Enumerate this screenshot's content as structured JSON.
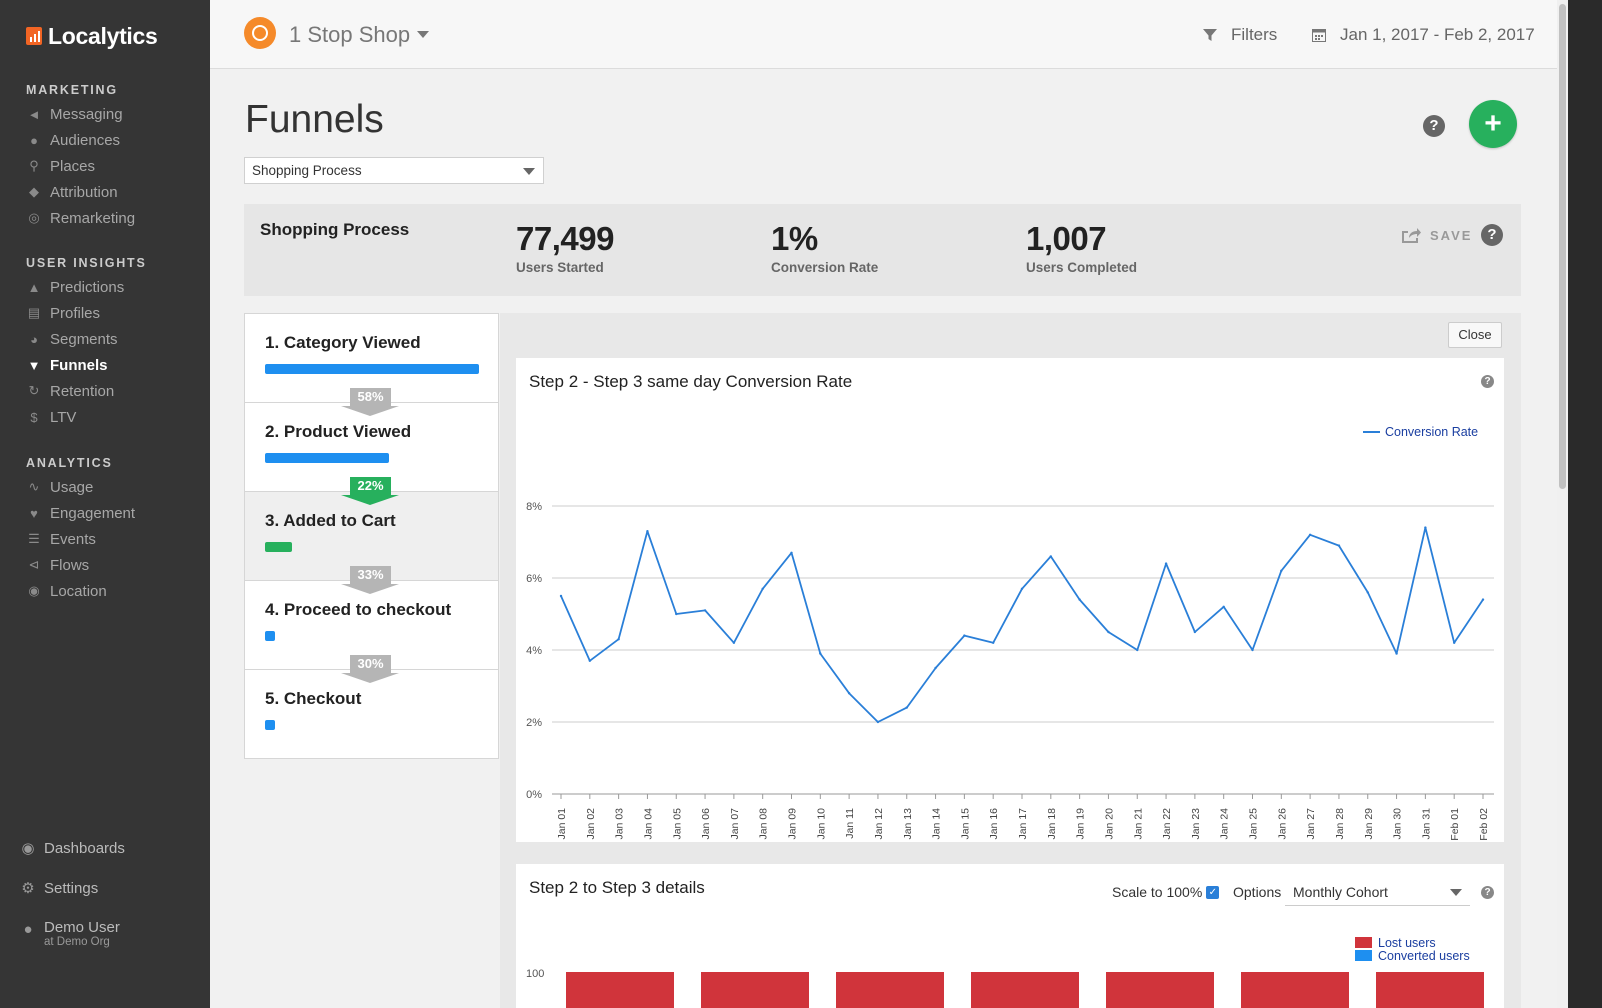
{
  "sidebar": {
    "brand": "Localytics",
    "sections": [
      {
        "title": "MARKETING",
        "items": [
          {
            "label": "Messaging",
            "icon": "megaphone-icon"
          },
          {
            "label": "Audiences",
            "icon": "people-icon"
          },
          {
            "label": "Places",
            "icon": "map-pin-icon"
          },
          {
            "label": "Attribution",
            "icon": "tag-icon"
          },
          {
            "label": "Remarketing",
            "icon": "target-icon"
          }
        ]
      },
      {
        "title": "USER INSIGHTS",
        "items": [
          {
            "label": "Predictions",
            "icon": "flask-icon"
          },
          {
            "label": "Profiles",
            "icon": "profile-card-icon"
          },
          {
            "label": "Segments",
            "icon": "pie-icon"
          },
          {
            "label": "Funnels",
            "icon": "funnel-icon",
            "active": true
          },
          {
            "label": "Retention",
            "icon": "refresh-icon"
          },
          {
            "label": "LTV",
            "icon": "dollar-icon"
          }
        ]
      },
      {
        "title": "ANALYTICS",
        "items": [
          {
            "label": "Usage",
            "icon": "pulse-icon"
          },
          {
            "label": "Engagement",
            "icon": "heart-icon"
          },
          {
            "label": "Events",
            "icon": "list-icon"
          },
          {
            "label": "Flows",
            "icon": "share-icon"
          },
          {
            "label": "Location",
            "icon": "globe-icon"
          }
        ]
      }
    ],
    "bottom": {
      "dashboards": "Dashboards",
      "settings": "Settings",
      "user_name": "Demo User",
      "user_org": "at Demo Org"
    }
  },
  "topbar": {
    "app_name": "1 Stop Shop",
    "filters_label": "Filters",
    "date_range": "Jan 1, 2017 - Feb 2, 2017"
  },
  "page": {
    "title": "Funnels",
    "selected_funnel": "Shopping Process"
  },
  "summary": {
    "name": "Shopping Process",
    "users_started": "77,499",
    "users_started_label": "Users Started",
    "conversion_rate": "1%",
    "conversion_rate_label": "Conversion Rate",
    "users_completed": "1,007",
    "users_completed_label": "Users Completed",
    "save_label": "SAVE"
  },
  "steps": [
    {
      "label": "1.  Category Viewed",
      "bar_fraction": 1.0,
      "color": "#1e8ff0"
    },
    {
      "label": "2.  Product Viewed",
      "bar_fraction": 0.58,
      "color": "#1e8ff0",
      "arrow": "58%",
      "arrow_color": "grey"
    },
    {
      "label": "3.  Added to Cart",
      "bar_fraction": 0.128,
      "color": "#27b05d",
      "arrow": "22%",
      "arrow_color": "green",
      "selected": true
    },
    {
      "label": "4.  Proceed to checkout",
      "bar_fraction": 0.042,
      "color": "#1e8ff0",
      "arrow": "33%",
      "arrow_color": "grey"
    },
    {
      "label": "5.  Checkout",
      "bar_fraction": 0.013,
      "color": "#1e8ff0",
      "arrow": "30%",
      "arrow_color": "grey"
    }
  ],
  "detail": {
    "close_label": "Close",
    "chart1_title": "Step 2 - Step 3 same day Conversion Rate",
    "chart2_title": "Step 2 to Step 3 details",
    "scale_label": "Scale to 100%",
    "options_label": "Options",
    "options_value": "Monthly Cohort",
    "legend_lost": "Lost users",
    "legend_converted": "Converted users",
    "y_top_label": "100"
  },
  "chart_data": {
    "type": "line",
    "title": "Step 2 - Step 3 same day Conversion Rate",
    "series": [
      {
        "name": "Conversion Rate",
        "color": "#2a7fd8",
        "values": [
          5.5,
          3.7,
          4.3,
          7.3,
          5.0,
          5.1,
          4.2,
          5.7,
          6.7,
          3.9,
          2.8,
          2.0,
          2.4,
          3.5,
          4.4,
          4.2,
          5.7,
          6.6,
          5.4,
          4.5,
          4.0,
          6.4,
          4.5,
          5.2,
          4.0,
          6.2,
          7.2,
          6.9,
          5.6,
          3.9,
          7.4,
          4.2,
          5.4
        ]
      }
    ],
    "categories": [
      "Thu, Jan 01",
      "Fri, Jan 02",
      "Sat, Jan 03",
      "Sun, Jan 04",
      "Mon, Jan 05",
      "Tue, Jan 06",
      "Wed, Jan 07",
      "Thu, Jan 08",
      "Fri, Jan 09",
      "Sat, Jan 10",
      "Sun, Jan 11",
      "Mon, Jan 12",
      "Tue, Jan 13",
      "Wed, Jan 14",
      "Thu, Jan 15",
      "Fri, Jan 16",
      "Sat, Jan 17",
      "Sun, Jan 18",
      "Mon, Jan 19",
      "Tue, Jan 20",
      "Wed, Jan 21",
      "Thu, Jan 22",
      "Fri, Jan 23",
      "Sat, Jan 24",
      "Sun, Jan 25",
      "Mon, Jan 26",
      "Tue, Jan 27",
      "Wed, Jan 28",
      "Thu, Jan 29",
      "Fri, Jan 30",
      "Sat, Jan 31",
      "Sun, Feb 01",
      "Mon, Feb 02"
    ],
    "y_ticks": [
      "0%",
      "2%",
      "4%",
      "6%",
      "8%"
    ],
    "ylim": [
      0,
      8
    ],
    "grid": true,
    "legend_position": "top-right"
  },
  "colors": {
    "accent_green": "#27b05d",
    "accent_blue": "#1e8ff0",
    "lost_red": "#d0343b"
  }
}
